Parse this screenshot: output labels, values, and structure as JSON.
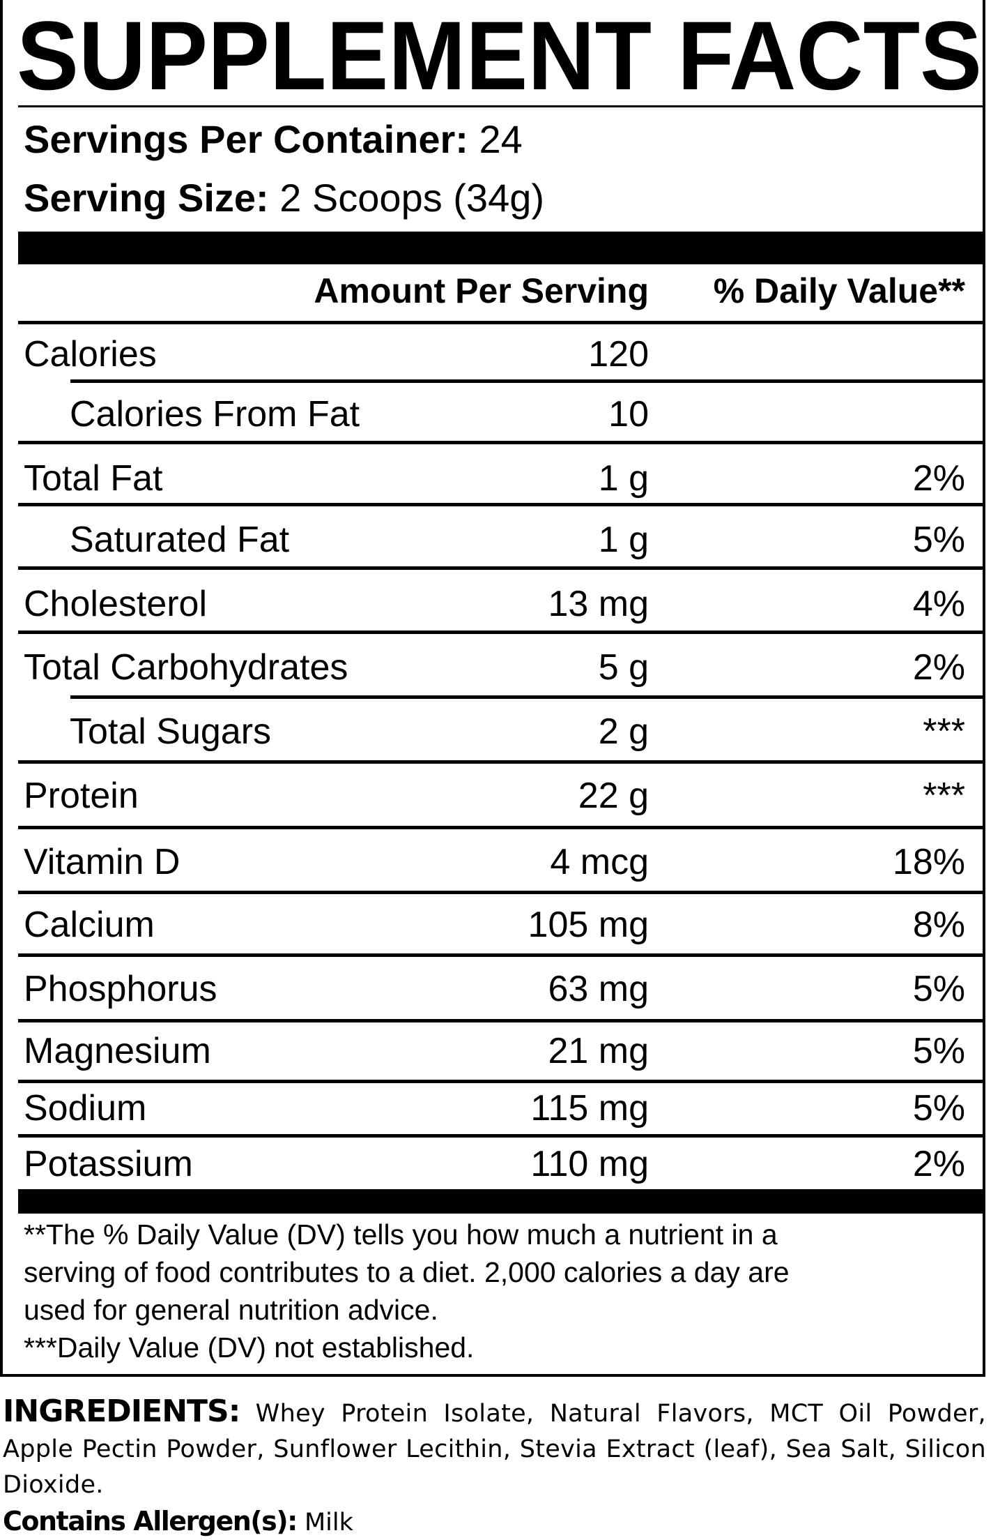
{
  "title": "SUPPLEMENT FACTS",
  "servings_per_container": {
    "label": "Servings Per Container:",
    "value": " 24"
  },
  "serving_size": {
    "label": "Serving Size:",
    "value": " 2 Scoops (34g)"
  },
  "header": {
    "amount": "Amount Per Serving",
    "daily_value": "% Daily Value**"
  },
  "rows": [
    {
      "label": "Calories",
      "amount": "120",
      "dv": "",
      "indent": false
    },
    {
      "label": "Calories From Fat",
      "amount": "10",
      "dv": "",
      "indent": true
    },
    {
      "label": "Total Fat",
      "amount": "1 g",
      "dv": "2%",
      "indent": false
    },
    {
      "label": "Saturated Fat",
      "amount": "1 g",
      "dv": "5%",
      "indent": true
    },
    {
      "label": "Cholesterol",
      "amount": "13 mg",
      "dv": "4%",
      "indent": false
    },
    {
      "label": "Total Carbohydrates",
      "amount": "5 g",
      "dv": "2%",
      "indent": false
    },
    {
      "label": "Total Sugars",
      "amount": "2 g",
      "dv": "***",
      "indent": true
    },
    {
      "label": "Protein",
      "amount": "22 g",
      "dv": "***",
      "indent": false
    },
    {
      "label": "Vitamin D",
      "amount": "4 mcg",
      "dv": "18%",
      "indent": false
    },
    {
      "label": "Calcium",
      "amount": "105 mg",
      "dv": "8%",
      "indent": false
    },
    {
      "label": "Phosphorus",
      "amount": "63 mg",
      "dv": "5%",
      "indent": false
    },
    {
      "label": "Magnesium",
      "amount": "21 mg",
      "dv": "5%",
      "indent": false
    },
    {
      "label": "Sodium",
      "amount": "115 mg",
      "dv": "5%",
      "indent": false
    },
    {
      "label": "Potassium",
      "amount": "110 mg",
      "dv": "2%",
      "indent": false
    }
  ],
  "footnotes": [
    "**The % Daily Value (DV) tells you how much a nutrient in a",
    "serving of food contributes to a diet. 2,000 calories a day are",
    "used for general nutrition advice.",
    "***Daily Value (DV) not established."
  ],
  "ingredients": {
    "label": "INGREDIENTS:",
    "text": " Whey Protein Isolate, Natural Flavors, MCT Oil Powder, Apple Pectin Powder, Sunflower Lecithin, Stevia Extract (leaf), Sea Salt, Silicon Dioxide."
  },
  "allergens": {
    "label": "Contains Allergen(s):",
    "value": " Milk"
  }
}
